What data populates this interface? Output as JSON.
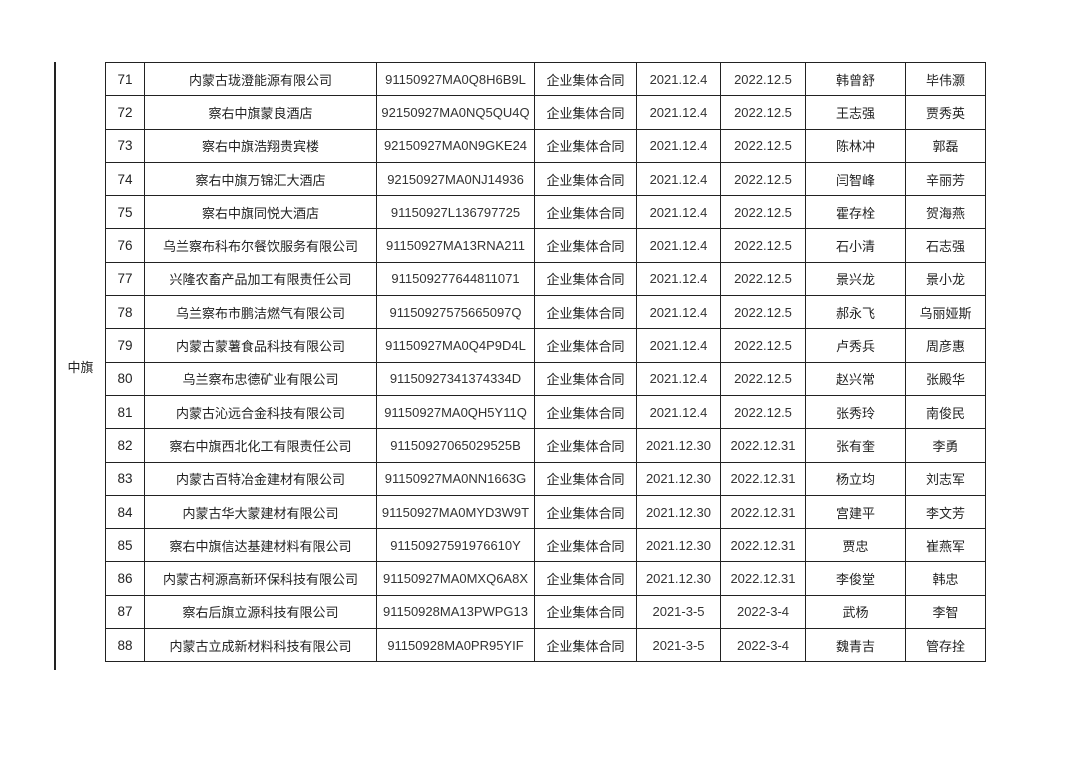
{
  "region": "中旗",
  "rows": [
    {
      "no": "71",
      "company": "内蒙古珑澄能源有限公司",
      "code": "91150927MA0Q8H6B9L",
      "type": "企业集体合同",
      "start": "2021.12.4",
      "end": "2022.12.5",
      "rep1": "韩曾舒",
      "rep2": "毕伟灏"
    },
    {
      "no": "72",
      "company": "察右中旗蒙良酒店",
      "code": "92150927MA0NQ5QU4Q",
      "type": "企业集体合同",
      "start": "2021.12.4",
      "end": "2022.12.5",
      "rep1": "王志强",
      "rep2": "贾秀英"
    },
    {
      "no": "73",
      "company": "察右中旗浩翔贵宾楼",
      "code": "92150927MA0N9GKE24",
      "type": "企业集体合同",
      "start": "2021.12.4",
      "end": "2022.12.5",
      "rep1": "陈林冲",
      "rep2": "郭磊"
    },
    {
      "no": "74",
      "company": "察右中旗万锦汇大酒店",
      "code": "92150927MA0NJ14936",
      "type": "企业集体合同",
      "start": "2021.12.4",
      "end": "2022.12.5",
      "rep1": "闫智峰",
      "rep2": "辛丽芳"
    },
    {
      "no": "75",
      "company": "察右中旗同悦大酒店",
      "code": "91150927L136797725",
      "type": "企业集体合同",
      "start": "2021.12.4",
      "end": "2022.12.5",
      "rep1": "霍存栓",
      "rep2": "贺海燕"
    },
    {
      "no": "76",
      "company": "乌兰察布科布尔餐饮服务有限公司",
      "code": "91150927MA13RNA211",
      "type": "企业集体合同",
      "start": "2021.12.4",
      "end": "2022.12.5",
      "rep1": "石小清",
      "rep2": "石志强"
    },
    {
      "no": "77",
      "company": "兴隆农畜产品加工有限责任公司",
      "code": "911509277644811071",
      "type": "企业集体合同",
      "start": "2021.12.4",
      "end": "2022.12.5",
      "rep1": "景兴龙",
      "rep2": "景小龙"
    },
    {
      "no": "78",
      "company": "乌兰察布市鹏洁燃气有限公司",
      "code": "91150927575665097Q",
      "type": "企业集体合同",
      "start": "2021.12.4",
      "end": "2022.12.5",
      "rep1": "郝永飞",
      "rep2": "乌丽娅斯"
    },
    {
      "no": "79",
      "company": "内蒙古蒙薯食品科技有限公司",
      "code": "91150927MA0Q4P9D4L",
      "type": "企业集体合同",
      "start": "2021.12.4",
      "end": "2022.12.5",
      "rep1": "卢秀兵",
      "rep2": "周彦惠"
    },
    {
      "no": "80",
      "company": "乌兰察布忠德矿业有限公司",
      "code": "91150927341374334D",
      "type": "企业集体合同",
      "start": "2021.12.4",
      "end": "2022.12.5",
      "rep1": "赵兴常",
      "rep2": "张殿华"
    },
    {
      "no": "81",
      "company": "内蒙古沁远合金科技有限公司",
      "code": "91150927MA0QH5Y11Q",
      "type": "企业集体合同",
      "start": "2021.12.4",
      "end": "2022.12.5",
      "rep1": "张秀玲",
      "rep2": "南俊民"
    },
    {
      "no": "82",
      "company": "察右中旗西北化工有限责任公司",
      "code": "91150927065029525B",
      "type": "企业集体合同",
      "start": "2021.12.30",
      "end": "2022.12.31",
      "rep1": "张有奎",
      "rep2": "李勇"
    },
    {
      "no": "83",
      "company": "内蒙古百特冶金建材有限公司",
      "code": "91150927MA0NN1663G",
      "type": "企业集体合同",
      "start": "2021.12.30",
      "end": "2022.12.31",
      "rep1": "杨立均",
      "rep2": "刘志军"
    },
    {
      "no": "84",
      "company": "内蒙古华大蒙建材有限公司",
      "code": "91150927MA0MYD3W9T",
      "type": "企业集体合同",
      "start": "2021.12.30",
      "end": "2022.12.31",
      "rep1": "宫建平",
      "rep2": "李文芳"
    },
    {
      "no": "85",
      "company": "察右中旗信达基建材料有限公司",
      "code": "91150927591976610Y",
      "type": "企业集体合同",
      "start": "2021.12.30",
      "end": "2022.12.31",
      "rep1": "贾忠",
      "rep2": "崔燕军"
    },
    {
      "no": "86",
      "company": "内蒙古柯源高新环保科技有限公司",
      "code": "91150927MA0MXQ6A8X",
      "type": "企业集体合同",
      "start": "2021.12.30",
      "end": "2022.12.31",
      "rep1": "李俊堂",
      "rep2": "韩忠"
    },
    {
      "no": "87",
      "company": "察右后旗立源科技有限公司",
      "code": "91150928MA13PWPG13",
      "type": "企业集体合同",
      "start": "2021-3-5",
      "end": "2022-3-4",
      "rep1": "武杨",
      "rep2": "李智"
    },
    {
      "no": "88",
      "company": "内蒙古立成新材料科技有限公司",
      "code": "91150928MA0PR95YIF",
      "type": "企业集体合同",
      "start": "2021-3-5",
      "end": "2022-3-4",
      "rep1": "魏青吉",
      "rep2": "管存拴"
    }
  ]
}
